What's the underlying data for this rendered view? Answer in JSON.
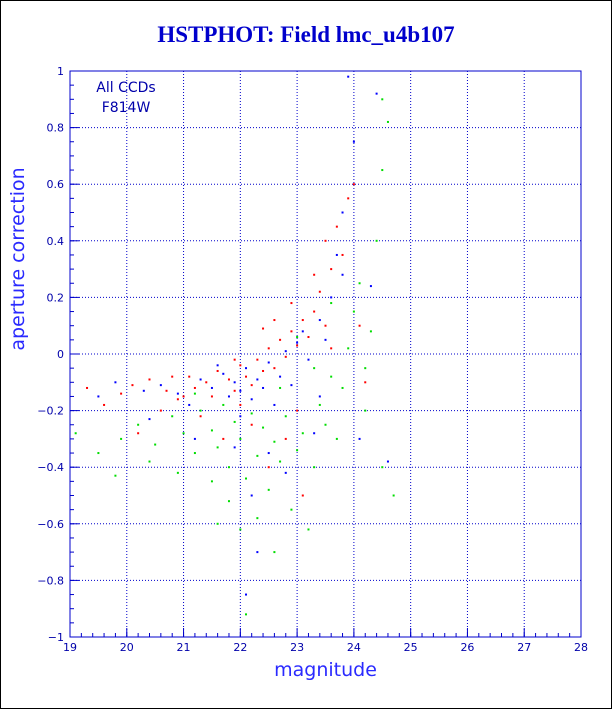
{
  "chart_data": {
    "type": "scatter",
    "title": "HSTPHOT: Field lmc_u4b107",
    "xlabel": "magnitude",
    "ylabel": "aperture correction",
    "xlim": [
      19,
      28
    ],
    "ylim": [
      -1,
      1
    ],
    "x_ticks": [
      19,
      20,
      21,
      22,
      23,
      24,
      25,
      26,
      27,
      28
    ],
    "y_ticks": [
      -1,
      -0.8,
      -0.6,
      -0.4,
      -0.2,
      0,
      0.2,
      0.4,
      0.6,
      0.8,
      1
    ],
    "grid": true,
    "annotations": [
      "All CCDs",
      "F814W"
    ],
    "series": [
      {
        "color": "#ff0000",
        "points": [
          [
            19.3,
            -0.12
          ],
          [
            19.6,
            -0.18
          ],
          [
            19.9,
            -0.14
          ],
          [
            20.1,
            -0.11
          ],
          [
            20.4,
            -0.09
          ],
          [
            20.7,
            -0.13
          ],
          [
            20.9,
            -0.16
          ],
          [
            21.1,
            -0.08
          ],
          [
            21.2,
            -0.12
          ],
          [
            21.4,
            -0.1
          ],
          [
            21.5,
            -0.15
          ],
          [
            21.6,
            -0.06
          ],
          [
            21.8,
            -0.09
          ],
          [
            21.9,
            -0.13
          ],
          [
            22.0,
            -0.04
          ],
          [
            22.1,
            -0.08
          ],
          [
            22.2,
            -0.11
          ],
          [
            22.3,
            -0.02
          ],
          [
            22.4,
            -0.06
          ],
          [
            22.5,
            0.02
          ],
          [
            22.6,
            -0.05
          ],
          [
            22.7,
            0.05
          ],
          [
            22.8,
            -0.01
          ],
          [
            22.9,
            0.08
          ],
          [
            23.0,
            0.03
          ],
          [
            23.1,
            0.12
          ],
          [
            23.2,
            0.06
          ],
          [
            23.3,
            0.15
          ],
          [
            23.4,
            0.22
          ],
          [
            23.5,
            0.1
          ],
          [
            23.6,
            0.3
          ],
          [
            23.7,
            0.45
          ],
          [
            23.8,
            0.35
          ],
          [
            23.9,
            0.55
          ],
          [
            23.5,
            0.4
          ],
          [
            23.3,
            0.28
          ],
          [
            22.9,
            0.18
          ],
          [
            22.6,
            0.12
          ],
          [
            22.2,
            -0.25
          ],
          [
            22.5,
            -0.4
          ],
          [
            22.8,
            -0.3
          ],
          [
            23.1,
            -0.5
          ],
          [
            21.7,
            -0.3
          ],
          [
            21.3,
            -0.22
          ],
          [
            20.6,
            -0.2
          ],
          [
            20.2,
            -0.28
          ],
          [
            24.1,
            0.1
          ],
          [
            24.2,
            -0.1
          ],
          [
            23.0,
            -0.2
          ],
          [
            22.0,
            -0.18
          ],
          [
            21.0,
            -0.15
          ],
          [
            23.6,
            0.02
          ],
          [
            24.0,
            0.6
          ],
          [
            22.4,
            0.09
          ],
          [
            21.9,
            -0.02
          ],
          [
            20.8,
            -0.08
          ]
        ]
      },
      {
        "color": "#0000ff",
        "points": [
          [
            19.5,
            -0.15
          ],
          [
            19.8,
            -0.1
          ],
          [
            20.3,
            -0.13
          ],
          [
            20.6,
            -0.11
          ],
          [
            20.9,
            -0.14
          ],
          [
            21.1,
            -0.18
          ],
          [
            21.3,
            -0.09
          ],
          [
            21.5,
            -0.12
          ],
          [
            21.7,
            -0.07
          ],
          [
            21.8,
            -0.15
          ],
          [
            21.9,
            -0.1
          ],
          [
            22.0,
            -0.13
          ],
          [
            22.1,
            -0.05
          ],
          [
            22.2,
            -0.16
          ],
          [
            22.3,
            -0.09
          ],
          [
            22.4,
            -0.12
          ],
          [
            22.5,
            -0.03
          ],
          [
            22.6,
            -0.18
          ],
          [
            22.7,
            -0.08
          ],
          [
            22.8,
            0.01
          ],
          [
            22.9,
            -0.11
          ],
          [
            23.0,
            0.04
          ],
          [
            23.2,
            -0.02
          ],
          [
            23.4,
            0.12
          ],
          [
            23.5,
            0.05
          ],
          [
            23.6,
            0.2
          ],
          [
            23.7,
            0.35
          ],
          [
            23.8,
            0.5
          ],
          [
            24.0,
            0.75
          ],
          [
            24.4,
            0.92
          ],
          [
            23.9,
            0.98
          ],
          [
            22.5,
            -0.35
          ],
          [
            22.2,
            -0.5
          ],
          [
            21.9,
            -0.33
          ],
          [
            22.8,
            -0.42
          ],
          [
            23.3,
            -0.28
          ],
          [
            24.1,
            -0.3
          ],
          [
            24.6,
            -0.38
          ],
          [
            22.3,
            -0.7
          ],
          [
            22.1,
            -0.85
          ],
          [
            21.2,
            -0.3
          ],
          [
            20.4,
            -0.23
          ],
          [
            23.8,
            0.28
          ],
          [
            23.1,
            0.08
          ],
          [
            22.0,
            -0.22
          ],
          [
            21.6,
            -0.04
          ],
          [
            24.3,
            0.24
          ],
          [
            23.4,
            -0.15
          ]
        ]
      },
      {
        "color": "#00dd00",
        "points": [
          [
            19.1,
            -0.28
          ],
          [
            19.5,
            -0.35
          ],
          [
            19.9,
            -0.3
          ],
          [
            20.2,
            -0.25
          ],
          [
            20.5,
            -0.32
          ],
          [
            20.8,
            -0.22
          ],
          [
            21.0,
            -0.28
          ],
          [
            21.2,
            -0.35
          ],
          [
            21.3,
            -0.2
          ],
          [
            21.5,
            -0.27
          ],
          [
            21.6,
            -0.33
          ],
          [
            21.7,
            -0.18
          ],
          [
            21.8,
            -0.4
          ],
          [
            21.9,
            -0.24
          ],
          [
            22.0,
            -0.3
          ],
          [
            22.1,
            -0.44
          ],
          [
            22.2,
            -0.21
          ],
          [
            22.3,
            -0.36
          ],
          [
            22.4,
            -0.26
          ],
          [
            22.5,
            -0.48
          ],
          [
            22.6,
            -0.31
          ],
          [
            22.7,
            -0.38
          ],
          [
            22.8,
            -0.22
          ],
          [
            22.9,
            -0.55
          ],
          [
            23.0,
            -0.34
          ],
          [
            23.1,
            -0.28
          ],
          [
            23.2,
            -0.62
          ],
          [
            23.3,
            -0.4
          ],
          [
            23.4,
            -0.18
          ],
          [
            23.5,
            -0.25
          ],
          [
            23.6,
            -0.08
          ],
          [
            23.7,
            -0.3
          ],
          [
            23.8,
            -0.12
          ],
          [
            23.9,
            0.02
          ],
          [
            24.0,
            0.15
          ],
          [
            24.1,
            0.25
          ],
          [
            24.2,
            -0.05
          ],
          [
            24.3,
            0.08
          ],
          [
            24.4,
            0.4
          ],
          [
            24.5,
            0.65
          ],
          [
            24.6,
            0.82
          ],
          [
            24.5,
            0.9
          ],
          [
            24.2,
            -0.2
          ],
          [
            24.5,
            -0.4
          ],
          [
            24.7,
            -0.5
          ],
          [
            22.0,
            -0.62
          ],
          [
            21.8,
            -0.52
          ],
          [
            22.3,
            -0.58
          ],
          [
            22.6,
            -0.7
          ],
          [
            21.5,
            -0.45
          ],
          [
            20.9,
            -0.42
          ],
          [
            20.4,
            -0.38
          ],
          [
            19.8,
            -0.43
          ],
          [
            22.1,
            -0.92
          ],
          [
            21.6,
            -0.6
          ],
          [
            23.3,
            -0.05
          ],
          [
            23.0,
            0.06
          ],
          [
            23.6,
            0.18
          ],
          [
            22.7,
            -0.12
          ],
          [
            21.2,
            -0.14
          ]
        ]
      }
    ]
  }
}
